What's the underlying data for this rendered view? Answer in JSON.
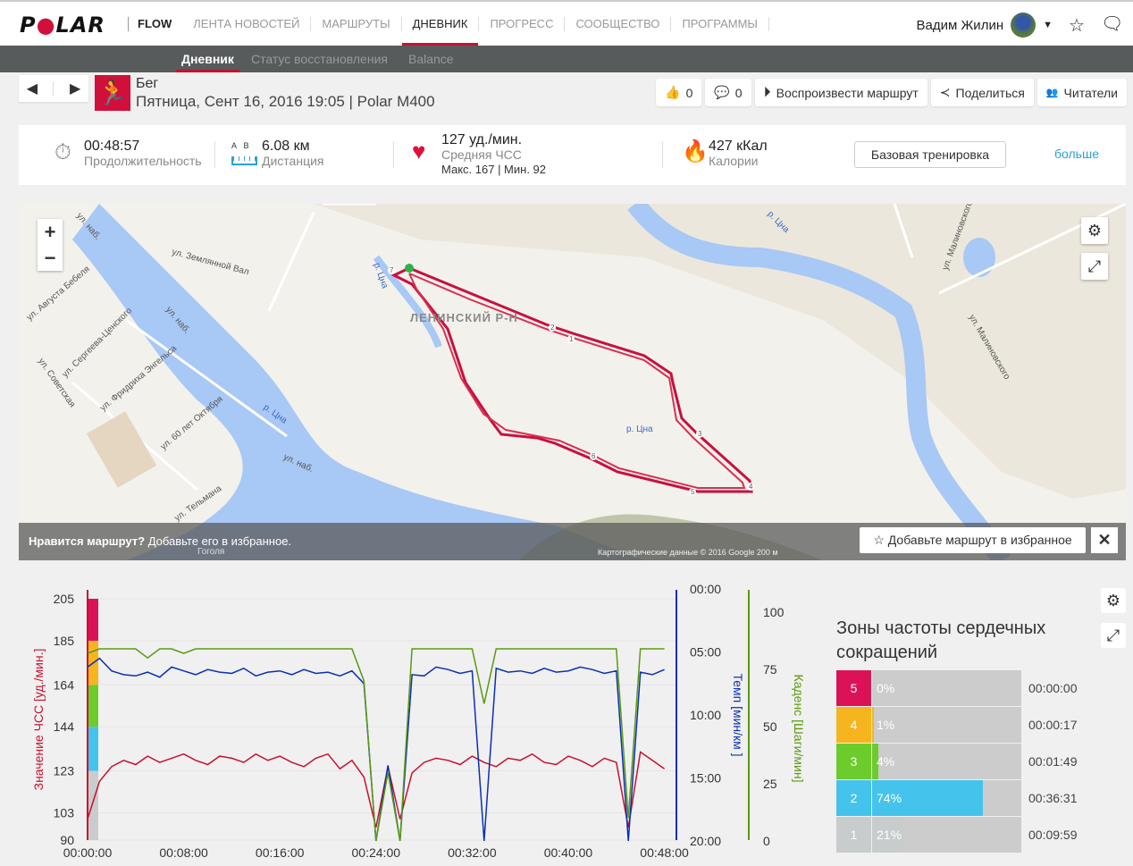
{
  "header": {
    "logo": "POLAR",
    "flow": "FLOW",
    "nav": [
      "ЛЕНТА НОВОСТЕЙ",
      "МАРШРУТЫ",
      "ДНЕВНИК",
      "ПРОГРЕСС",
      "СООБЩЕСТВО",
      "ПРОГРАММЫ"
    ],
    "active_nav": "ДНЕВНИК",
    "user": "Вадим Жилин"
  },
  "subnav": {
    "items": [
      "Дневник",
      "Статус восстановления",
      "Balance"
    ]
  },
  "session": {
    "sport": "Бег",
    "datetime": "Пятница, Сент 16, 2016 19:05 | Polar M400"
  },
  "actions": {
    "likes": "0",
    "comments": "0",
    "replay": "Воспроизвести маршрут",
    "share": "Поделиться",
    "followers": "Читатели"
  },
  "summary": {
    "duration": "00:48:57",
    "duration_label": "Продолжительность",
    "dist_a": "A",
    "dist_b": "B",
    "distance": "6.08 км",
    "distance_label": "Дистанция",
    "hr": "127 уд./мин.",
    "hr_label": "Средняя ЧСС",
    "hr_minmax": "Макс. 167  |  Мин. 92",
    "calories": "427 кКал",
    "calories_label": "Калории",
    "base_button": "Базовая тренировка",
    "more": "больше"
  },
  "map": {
    "labels": [
      "ул. Землянной Вал",
      "ул. Августа Бебеля",
      "ул. Сергеева-Ценского",
      "ул. Советская",
      "ул. Фридриха Энгельса",
      "ул. 60 лет Октября",
      "р. Цна",
      "р. Цна",
      "р. Цна",
      "р. Цна",
      "ЛЕНИНСКИЙ Р-Н",
      "ул. Малиновского",
      "ул. Малиновского",
      "ул. Тельмана",
      "ул. наб.",
      "ул. наб.",
      "ул. наб.",
      "Гоголя"
    ],
    "km_markers": [
      "1",
      "2",
      "3",
      "4",
      "5",
      "6",
      "7"
    ],
    "zoom_in": "+",
    "zoom_out": "−",
    "banner_bold": "Нравится маршрут?",
    "banner_text": " Добавьте его в избранное.",
    "fav_button": "Добавьте маршрут в избранное",
    "close": "✕",
    "copyright": "Картографические данные © 2016 Google    200 м"
  },
  "chart_data": {
    "type": "line",
    "x_label_ticks": [
      "00:00:00",
      "00:08:00",
      "00:16:00",
      "00:24:00",
      "00:32:00",
      "00:40:00",
      "00:48:00"
    ],
    "x_minutes": [
      0,
      1,
      2,
      3,
      4,
      5,
      6,
      7,
      8,
      9,
      10,
      11,
      12,
      13,
      14,
      15,
      16,
      17,
      18,
      19,
      20,
      21,
      22,
      23,
      24,
      25,
      26,
      27,
      28,
      29,
      30,
      31,
      32,
      33,
      34,
      35,
      36,
      37,
      38,
      39,
      40,
      41,
      42,
      43,
      44,
      45,
      46,
      47,
      48
    ],
    "xlim": [
      0,
      49
    ],
    "axes": {
      "hr": {
        "label": "Значение ЧСС [уд./мин.]",
        "ticks": [
          "90",
          "103",
          "123",
          "144",
          "164",
          "185",
          "205"
        ],
        "ylim": [
          90,
          205
        ]
      },
      "pace": {
        "label": "Темп [мин/км ]",
        "ticks": [
          "00:00",
          "05:00",
          "10:00",
          "15:00",
          "20:00"
        ],
        "ylim": [
          0,
          20
        ]
      },
      "cadence": {
        "label": "Каденс [Шаги/мин]",
        "ticks": [
          "0",
          "25",
          "50",
          "75",
          "100"
        ],
        "ylim": [
          0,
          110
        ]
      }
    },
    "series": [
      {
        "name": "ЧСС",
        "color": "#c8102e",
        "values": [
          100,
          118,
          125,
          128,
          126,
          130,
          127,
          129,
          131,
          128,
          126,
          130,
          129,
          127,
          131,
          128,
          130,
          127,
          125,
          129,
          131,
          124,
          128,
          120,
          96,
          125,
          100,
          122,
          127,
          129,
          128,
          126,
          130,
          127,
          125,
          129,
          128,
          131,
          127,
          126,
          130,
          128,
          125,
          129,
          127,
          96,
          132,
          128,
          124
        ]
      },
      {
        "name": "Темп",
        "color": "#0a2fb4",
        "values": [
          6.2,
          5.5,
          6.5,
          6.8,
          6.9,
          6.6,
          7.0,
          6.2,
          6.5,
          6.8,
          6.4,
          6.6,
          6.7,
          6.3,
          6.9,
          6.6,
          6.5,
          6.8,
          6.4,
          6.7,
          6.6,
          6.9,
          6.5,
          7.5,
          20,
          14,
          20,
          6.8,
          6.9,
          6.2,
          6.4,
          6.7,
          6.5,
          20,
          6.3,
          6.6,
          6.5,
          6.7,
          6.3,
          6.6,
          6.5,
          6.2,
          6.4,
          6.7,
          6.5,
          20,
          6.6,
          6.8,
          6.4
        ]
      },
      {
        "name": "Каденс",
        "color": "#5a9a10",
        "values": [
          82,
          84,
          84,
          84,
          84,
          80,
          84,
          84,
          82,
          84,
          84,
          84,
          84,
          84,
          84,
          84,
          84,
          84,
          84,
          84,
          84,
          84,
          84,
          70,
          0,
          30,
          0,
          84,
          84,
          84,
          84,
          84,
          84,
          60,
          84,
          84,
          84,
          84,
          84,
          84,
          84,
          84,
          84,
          84,
          84,
          10,
          84,
          84,
          84
        ]
      }
    ],
    "hr_zone_bands": [
      {
        "from": 90,
        "to": 123,
        "color": "#c8cccc"
      },
      {
        "from": 123,
        "to": 144,
        "color": "#44c3ec"
      },
      {
        "from": 144,
        "to": 164,
        "color": "#6ccc2c"
      },
      {
        "from": 164,
        "to": 185,
        "color": "#f6b51e"
      },
      {
        "from": 185,
        "to": 205,
        "color": "#dc1259"
      }
    ]
  },
  "zones": {
    "title": "Зоны частоты сердечных сокращений",
    "rows": [
      {
        "zone": "5",
        "pct": "0%",
        "fraction": 0.0,
        "time": "00:00:00",
        "color": "#dc1259"
      },
      {
        "zone": "4",
        "pct": "1%",
        "fraction": 0.01,
        "time": "00:00:17",
        "color": "#f6b51e"
      },
      {
        "zone": "3",
        "pct": "4%",
        "fraction": 0.04,
        "time": "00:01:49",
        "color": "#6ccc2c"
      },
      {
        "zone": "2",
        "pct": "74%",
        "fraction": 0.74,
        "time": "00:36:31",
        "color": "#44c3ec"
      },
      {
        "zone": "1",
        "pct": "21%",
        "fraction": 0.21,
        "time": "00:09:59",
        "color": "#c8cccc"
      }
    ]
  }
}
